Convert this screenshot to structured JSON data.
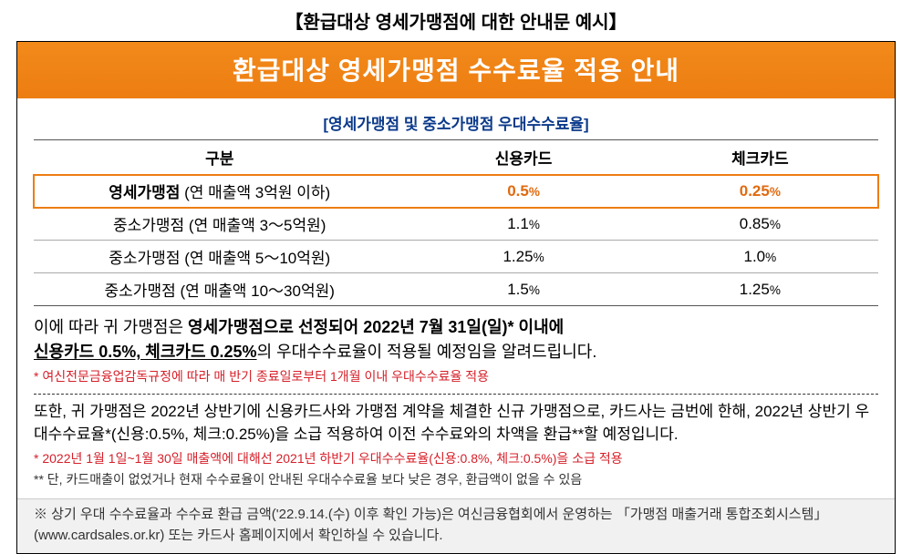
{
  "outer_title": "【환급대상 영세가맹점에 대한 안내문 예시】",
  "banner": "환급대상 영세가맹점 수수료율 적용 안내",
  "subtitle": "[영세가맹점 및 중소가맹점 우대수수료율]",
  "table": {
    "headers": {
      "col1": "구분",
      "col2": "신용카드",
      "col3": "체크카드"
    },
    "rows": [
      {
        "cat_main": "영세가맹점",
        "cat_sub": " (연 매출액 3억원 이하)",
        "credit": "0.5",
        "check": "0.25",
        "highlight": true
      },
      {
        "cat_main": "중소가맹점",
        "cat_sub": " (연 매출액 3～5억원)",
        "credit": "1.1",
        "check": "0.85",
        "highlight": false
      },
      {
        "cat_main": "중소가맹점",
        "cat_sub": " (연 매출액 5～10억원)",
        "credit": "1.25",
        "check": "1.0",
        "highlight": false
      },
      {
        "cat_main": "중소가맹점",
        "cat_sub": " (연 매출액 10～30억원)",
        "credit": "1.5",
        "check": "1.25",
        "highlight": false
      }
    ],
    "pct": "%"
  },
  "para1": {
    "pre": "이에 따라 귀 가맹점은 ",
    "b1": "영세가맹점으로 선정되어 2022년 7월 31일(일)* 이내에",
    "line2_b": "신용카드 0.5%, 체크카드 0.25%",
    "line2_rest": "의 우대수수료율이 적용될 예정임을 알려드립니다."
  },
  "red1": "* 여신전문금융업감독규정에 따라 매 반기 종료일로부터 1개월 이내 우대수수료율 적용",
  "para2": "또한, 귀 가맹점은 2022년 상반기에 신용카드사와 가맹점 계약을 체결한 신규 가맹점으로, 카드사는 금번에 한해, 2022년 상반기 우대수수료율*(신용:0.5%, 체크:0.25%)을 소급 적용하여 이전 수수료와의 차액을 환급**할 예정입니다.",
  "red2": "* 2022년 1월 1일~1월 30일 매출액에 대해선 2021년 하반기 우대수수료율(신용:0.8%, 체크:0.5%)을 소급 적용",
  "note2": "** 단, 카드매출이 없었거나 현재 수수료율이 안내된 우대수수료율 보다 낮은 경우, 환급액이 없을 수 있음",
  "footnote": "※ 상기 우대 수수료율과 수수료 환급 금액('22.9.14.(수) 이후 확인 가능)은 여신금융협회에서 운영하는 「가맹점 매출거래 통합조회시스템」(www.cardsales.or.kr) 또는 카드사 홈페이지에서 확인하실 수 있습니다.",
  "colors": {
    "accent": "#ed7d12",
    "red": "#d6202a",
    "blue": "#0b3a8a"
  }
}
